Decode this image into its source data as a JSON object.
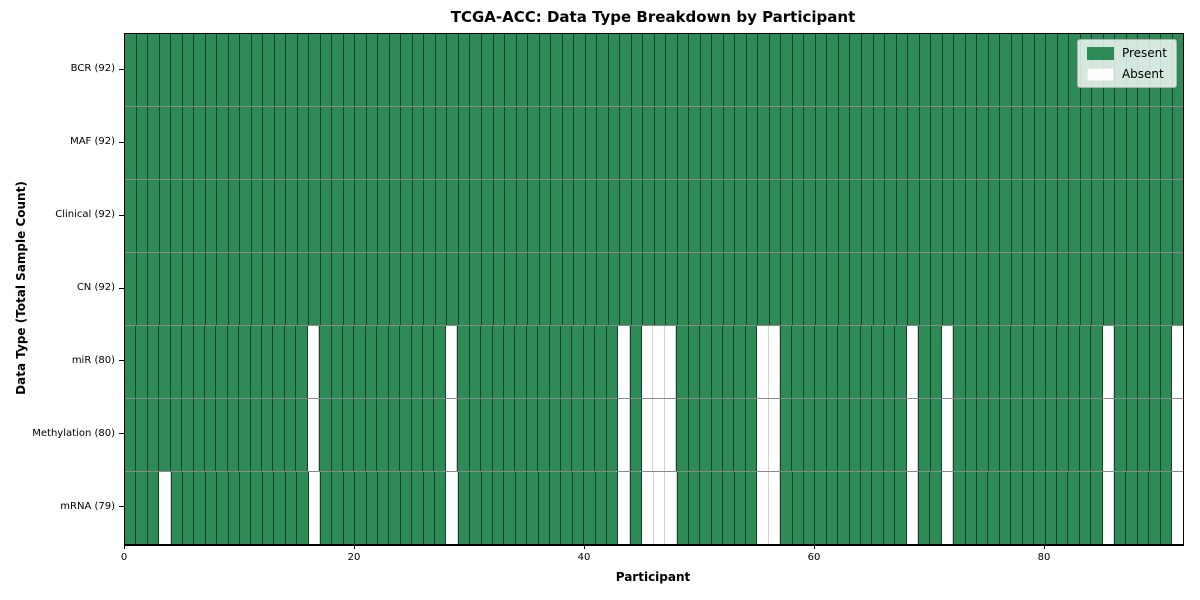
{
  "chart_data": {
    "type": "heatmap",
    "title": "TCGA-ACC: Data Type Breakdown by Participant",
    "xlabel": "Participant",
    "ylabel": "Data Type (Total Sample Count)",
    "n_participants": 92,
    "x_axis": {
      "ticks": [
        0,
        20,
        40,
        60,
        80
      ],
      "range": [
        0,
        92
      ]
    },
    "colors": {
      "present": "#2e8b57",
      "absent": "#ffffff"
    },
    "legend": {
      "position": "upper right",
      "entries": [
        {
          "label": "Present",
          "color": "#2e8b57"
        },
        {
          "label": "Absent",
          "color": "#ffffff"
        }
      ]
    },
    "rows": [
      {
        "label": "BCR (92)",
        "data_type": "BCR",
        "present_count": 92,
        "absent_participants": []
      },
      {
        "label": "MAF (92)",
        "data_type": "MAF",
        "present_count": 92,
        "absent_participants": []
      },
      {
        "label": "Clinical (92)",
        "data_type": "Clinical",
        "present_count": 92,
        "absent_participants": []
      },
      {
        "label": "CN (92)",
        "data_type": "CN",
        "present_count": 92,
        "absent_participants": []
      },
      {
        "label": "miR (80)",
        "data_type": "miR",
        "present_count": 80,
        "absent_participants": [
          16,
          28,
          43,
          45,
          46,
          47,
          55,
          56,
          68,
          71,
          85,
          91
        ]
      },
      {
        "label": "Methylation (80)",
        "data_type": "Methylation",
        "present_count": 80,
        "absent_participants": [
          16,
          28,
          43,
          45,
          46,
          47,
          55,
          56,
          68,
          71,
          85,
          91
        ]
      },
      {
        "label": "mRNA (79)",
        "data_type": "mRNA",
        "present_count": 79,
        "absent_participants": [
          3,
          16,
          28,
          43,
          45,
          46,
          47,
          55,
          56,
          68,
          71,
          85,
          91
        ]
      }
    ]
  }
}
